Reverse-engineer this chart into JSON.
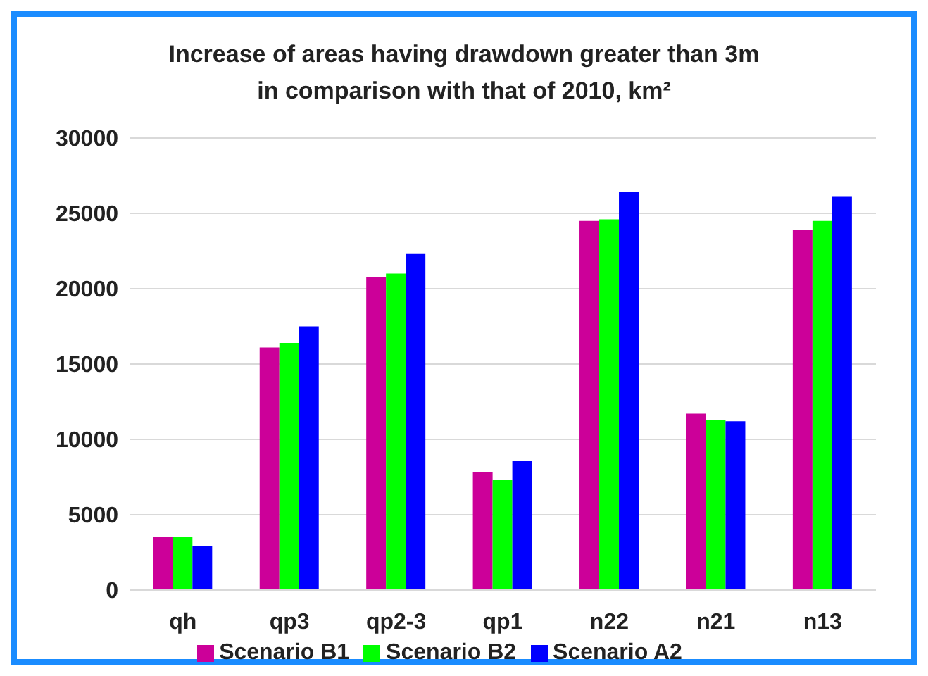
{
  "chart_data": {
    "type": "bar",
    "title": "Increase of areas having drawdown greater than 3m\nin comparison with that of 2010, km²",
    "categories": [
      "qh",
      "qp3",
      "qp2-3",
      "qp1",
      "n22",
      "n21",
      "n13"
    ],
    "series": [
      {
        "name": "Scenario B1",
        "color": "#cc0099",
        "values": [
          3500,
          16100,
          20800,
          7800,
          24500,
          11700,
          23900
        ]
      },
      {
        "name": "Scenario B2",
        "color": "#00ff00",
        "values": [
          3500,
          16400,
          21000,
          7300,
          24600,
          11300,
          24500
        ]
      },
      {
        "name": "Scenario A2",
        "color": "#0000ff",
        "values": [
          2900,
          17500,
          22300,
          8600,
          26400,
          11200,
          26100
        ]
      }
    ],
    "ylim": [
      0,
      30000
    ],
    "yticks": [
      0,
      5000,
      10000,
      15000,
      20000,
      25000,
      30000
    ],
    "grid": "y",
    "legend": "bottom"
  }
}
